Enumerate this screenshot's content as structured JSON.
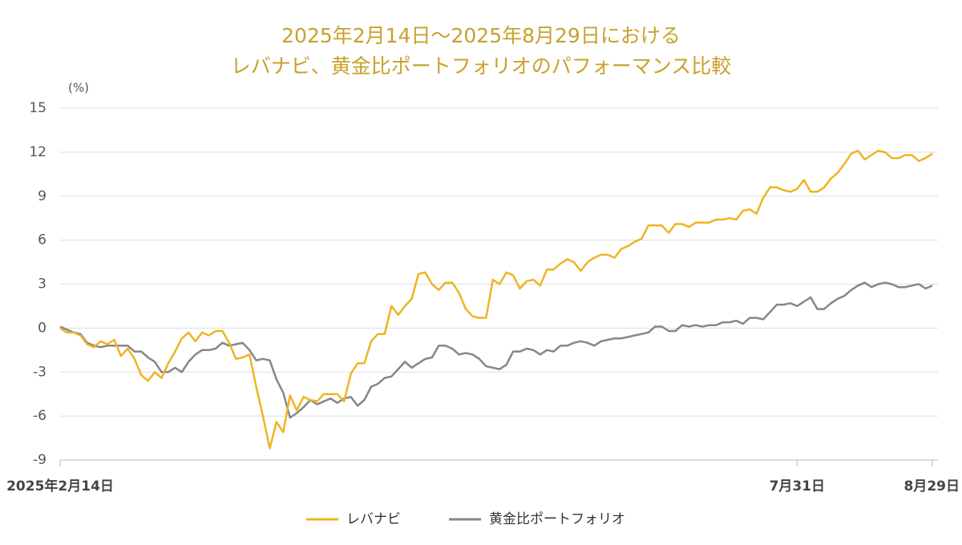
{
  "chart_data": {
    "type": "line",
    "title": [
      "2025年2月14日〜2025年8月29日における",
      "レバナビ、黄金比ポートフォリオのパフォーマンス比較"
    ],
    "y_label": "(%)",
    "categories": [
      "2025年2月14日",
      null,
      null,
      null,
      null,
      null,
      null,
      null,
      null,
      null,
      null,
      null,
      null,
      null,
      null,
      null,
      null,
      null,
      null,
      null,
      null,
      null,
      null,
      null,
      null,
      null,
      null,
      null,
      null,
      null,
      null,
      null,
      null,
      null,
      null,
      null,
      null,
      null,
      null,
      null,
      null,
      null,
      null,
      null,
      null,
      null,
      null,
      null,
      null,
      null,
      null,
      null,
      null,
      null,
      null,
      null,
      null,
      null,
      null,
      null,
      null,
      null,
      null,
      null,
      null,
      null,
      null,
      null,
      null,
      null,
      null,
      null,
      null,
      null,
      null,
      null,
      null,
      null,
      null,
      null,
      null,
      null,
      null,
      null,
      null,
      null,
      null,
      null,
      null,
      null,
      null,
      null,
      null,
      null,
      null,
      null,
      null,
      null,
      null,
      null,
      null,
      null,
      null,
      null,
      null,
      null,
      null,
      null,
      null,
      "7月31日",
      null,
      null,
      null,
      null,
      null,
      null,
      null,
      null,
      null,
      null,
      null,
      null,
      null,
      null,
      null,
      null,
      null,
      null,
      null,
      "8月29日"
    ],
    "series": [
      {
        "name": "レバナビ",
        "color": "#f0b323",
        "values": [
          0,
          -0.3,
          -0.3,
          -0.5,
          -1.1,
          -1.3,
          -0.9,
          -1.1,
          -0.8,
          -1.9,
          -1.4,
          -2.1,
          -3.2,
          -3.6,
          -3.0,
          -3.4,
          -2.4,
          -1.6,
          -0.7,
          -0.3,
          -0.9,
          -0.3,
          -0.5,
          -0.2,
          -0.2,
          -1.0,
          -2.1,
          -2.0,
          -1.8,
          -4.0,
          -6.0,
          -8.2,
          -6.4,
          -7.1,
          -4.6,
          -5.6,
          -4.7,
          -4.9,
          -5.0,
          -4.5,
          -4.5,
          -4.5,
          -5.0,
          -3.1,
          -2.4,
          -2.4,
          -0.9,
          -0.4,
          -0.4,
          1.5,
          0.9,
          1.5,
          2.0,
          3.7,
          3.8,
          3.0,
          2.6,
          3.1,
          3.1,
          2.4,
          1.3,
          0.8,
          0.7,
          0.7,
          3.3,
          3.0,
          3.8,
          3.6,
          2.7,
          3.2,
          3.3,
          2.9,
          4.0,
          4.0,
          4.4,
          4.7,
          4.5,
          3.9,
          4.5,
          4.8,
          5.0,
          5.0,
          4.8,
          5.4,
          5.6,
          5.9,
          6.1,
          7.0,
          7.0,
          7.0,
          6.5,
          7.1,
          7.1,
          6.9,
          7.2,
          7.2,
          7.2,
          7.4,
          7.4,
          7.5,
          7.4,
          8.0,
          8.1,
          7.8,
          8.9,
          9.6,
          9.6,
          9.4,
          9.3,
          9.5,
          10.1,
          9.3,
          9.3,
          9.6,
          10.2,
          10.6,
          11.2,
          11.9,
          12.1,
          11.5,
          11.8,
          12.1,
          12.0,
          11.6,
          11.6,
          11.8,
          11.8,
          11.4,
          11.6,
          11.9
        ]
      },
      {
        "name": "黄金比ポートフォリオ",
        "color": "#878787",
        "values": [
          0.1,
          -0.1,
          -0.3,
          -0.4,
          -1.0,
          -1.2,
          -1.3,
          -1.2,
          -1.2,
          -1.2,
          -1.2,
          -1.6,
          -1.6,
          -2.0,
          -2.3,
          -3.0,
          -3.0,
          -2.7,
          -3.0,
          -2.3,
          -1.8,
          -1.5,
          -1.5,
          -1.4,
          -1.0,
          -1.2,
          -1.1,
          -1.0,
          -1.5,
          -2.2,
          -2.1,
          -2.2,
          -3.5,
          -4.4,
          -6.1,
          -5.8,
          -5.4,
          -4.9,
          -5.2,
          -5.0,
          -4.8,
          -5.1,
          -4.8,
          -4.7,
          -5.3,
          -4.9,
          -4.0,
          -3.8,
          -3.4,
          -3.3,
          -2.8,
          -2.3,
          -2.7,
          -2.4,
          -2.1,
          -2.0,
          -1.2,
          -1.2,
          -1.4,
          -1.8,
          -1.7,
          -1.8,
          -2.1,
          -2.6,
          -2.7,
          -2.8,
          -2.5,
          -1.6,
          -1.6,
          -1.4,
          -1.5,
          -1.8,
          -1.5,
          -1.6,
          -1.2,
          -1.2,
          -1.0,
          -0.9,
          -1.0,
          -1.2,
          -0.9,
          -0.8,
          -0.7,
          -0.7,
          -0.6,
          -0.5,
          -0.4,
          -0.3,
          0.1,
          0.1,
          -0.2,
          -0.2,
          0.2,
          0.1,
          0.2,
          0.1,
          0.2,
          0.2,
          0.4,
          0.4,
          0.5,
          0.3,
          0.7,
          0.7,
          0.6,
          1.1,
          1.6,
          1.6,
          1.7,
          1.5,
          1.8,
          2.1,
          1.3,
          1.3,
          1.7,
          2.0,
          2.2,
          2.6,
          2.9,
          3.1,
          2.8,
          3.0,
          3.1,
          3.0,
          2.8,
          2.8,
          2.9,
          3.0,
          2.7,
          2.9
        ]
      }
    ],
    "ylim": [
      -9,
      15
    ],
    "yticks": [
      -9,
      -6,
      -3,
      0,
      3,
      6,
      9,
      12,
      15
    ],
    "grid": true,
    "legend": "bottom"
  }
}
